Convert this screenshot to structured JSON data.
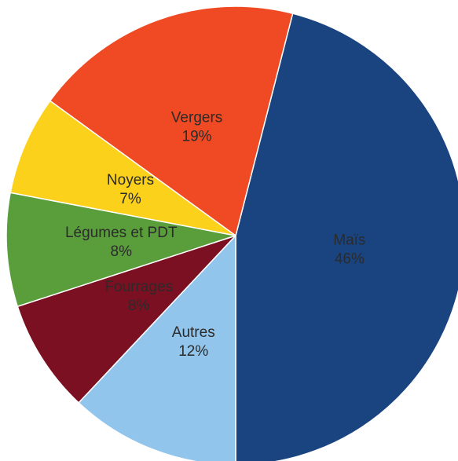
{
  "chart_data": {
    "type": "pie",
    "categories": [
      "Maïs",
      "Autres",
      "Fourrages",
      "Légumes et PDT",
      "Noyers",
      "Vergers"
    ],
    "values": [
      46,
      12,
      8,
      8,
      7,
      19
    ],
    "value_labels": [
      "46%",
      "12%",
      "8%",
      "8%",
      "7%",
      "19%"
    ],
    "colors": [
      "#1a4480",
      "#92c5eb",
      "#7b1022",
      "#5a9e3c",
      "#fcd11c",
      "#ef4a23"
    ]
  }
}
